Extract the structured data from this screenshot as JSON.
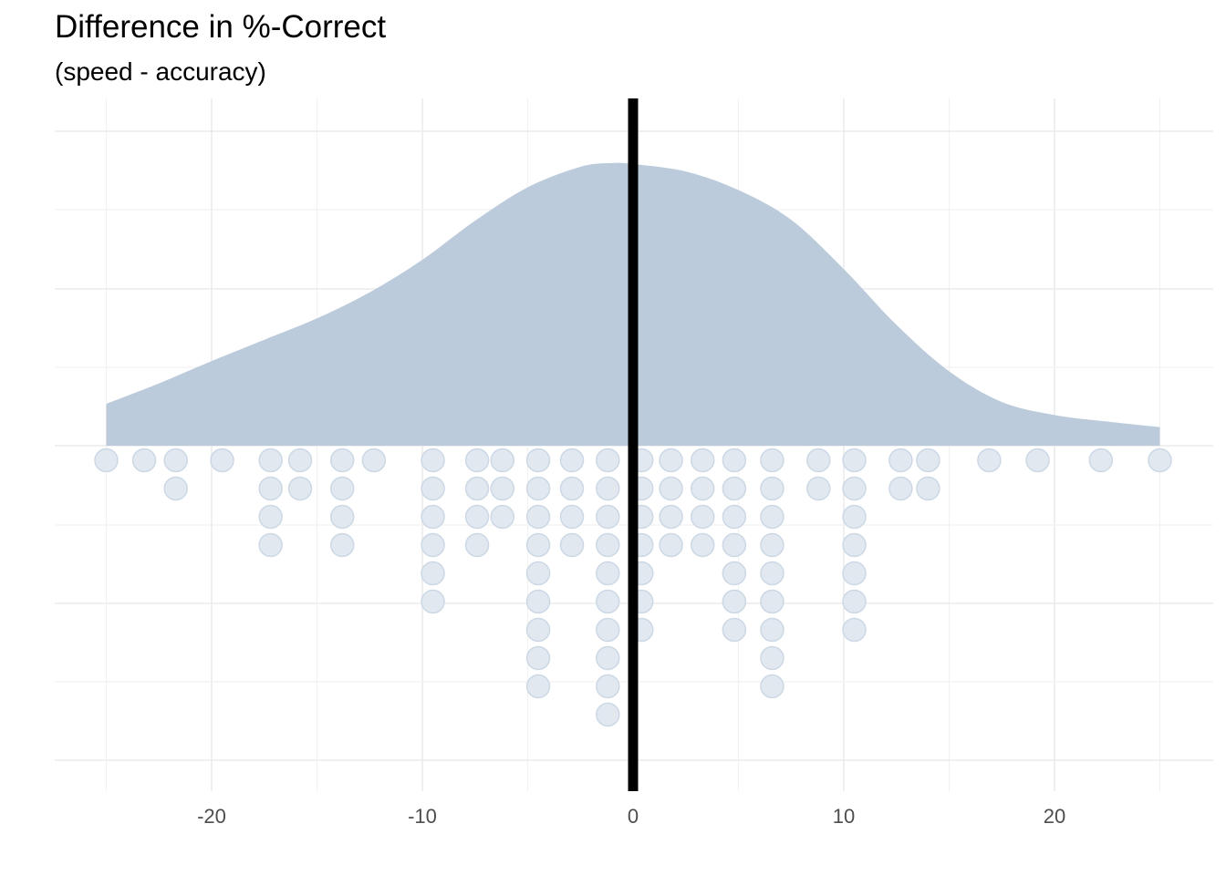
{
  "chart_data": {
    "type": "area",
    "title": "Difference in %-Correct",
    "subtitle": "(speed - accuracy)",
    "xlabel": "",
    "ylabel": "",
    "xlim": [
      -27.5,
      27.5
    ],
    "x_ticks": [
      -20,
      -10,
      0,
      10,
      20
    ],
    "x_tick_labels": [
      "-20",
      "-10",
      "0",
      "10",
      "20"
    ],
    "grid": true,
    "y_axis_labels_shown": false,
    "reference_line_x": 0,
    "colors": {
      "density_fill": "#bccbdb",
      "dot_fill": "#e1e8f0",
      "dot_stroke": "#cdd8e5",
      "reference_line": "#000000",
      "grid": "#ebebeb",
      "tick_label": "#4d4d4d"
    },
    "density": {
      "x": [
        -25,
        -22.5,
        -20,
        -17.5,
        -15,
        -12.5,
        -10,
        -7.5,
        -5,
        -2.5,
        -1,
        0,
        2.5,
        5,
        7.5,
        10,
        12.5,
        15,
        17.5,
        20,
        22.5,
        25
      ],
      "y": [
        0.045,
        0.067,
        0.091,
        0.114,
        0.137,
        0.165,
        0.2,
        0.242,
        0.278,
        0.3,
        0.304,
        0.303,
        0.295,
        0.275,
        0.243,
        0.19,
        0.13,
        0.08,
        0.047,
        0.033,
        0.026,
        0.02
      ]
    },
    "dots": {
      "x": [
        -25,
        -23.2,
        -21.7,
        -19.5,
        -17.2,
        -15.8,
        -13.8,
        -12.3,
        -9.5,
        -7.4,
        -6.2,
        -4.5,
        -2.9,
        -1.2,
        0.4,
        1.8,
        3.3,
        4.8,
        6.6,
        8.8,
        10.5,
        12.7,
        14,
        16.9,
        19.2,
        22.2,
        25
      ],
      "counts": [
        1,
        1,
        2,
        1,
        4,
        2,
        4,
        1,
        6,
        4,
        3,
        9,
        4,
        10,
        7,
        4,
        4,
        7,
        9,
        2,
        7,
        2,
        2,
        1,
        1,
        1,
        1
      ]
    }
  }
}
